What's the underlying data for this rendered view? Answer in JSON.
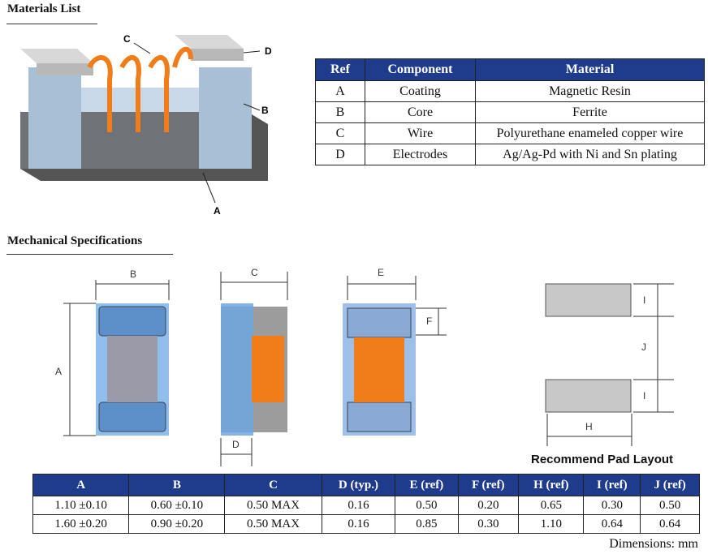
{
  "materials": {
    "title": "Materials List",
    "callouts": [
      "A",
      "B",
      "C",
      "D"
    ],
    "headers": [
      "Ref",
      "Component",
      "Material"
    ],
    "rows": [
      [
        "A",
        "Coating",
        "Magnetic Resin"
      ],
      [
        "B",
        "Core",
        "Ferrite"
      ],
      [
        "C",
        "Wire",
        "Polyurethane enameled copper wire"
      ],
      [
        "D",
        "Electrodes",
        "Ag/Ag-Pd with Ni and Sn plating"
      ]
    ]
  },
  "mechanical": {
    "title": "Mechanical Specifications",
    "dim_labels": {
      "A": "A",
      "B": "B",
      "C": "C",
      "D": "D",
      "E": "E",
      "F": "F",
      "H": "H",
      "I1": "I",
      "I2": "I",
      "J": "J"
    },
    "pad_layout_caption": "Recommend Pad Layout",
    "headers": [
      "A",
      "B",
      "C",
      "D (typ.)",
      "E (ref)",
      "F (ref)",
      "H (ref)",
      "I (ref)",
      "J (ref)"
    ],
    "rows": [
      [
        "1.10 ±0.10",
        "0.60 ±0.10",
        "0.50 MAX",
        "0.16",
        "0.50",
        "0.20",
        "0.65",
        "0.30",
        "0.50"
      ],
      [
        "1.60 ±0.20",
        "0.90 ±0.20",
        "0.50 MAX",
        "0.16",
        "0.85",
        "0.30",
        "1.10",
        "0.64",
        "0.64"
      ]
    ],
    "units_note": "Dimensions: mm"
  },
  "colors": {
    "header_bg": "#1f3c8c",
    "wire": "#f07d1a",
    "body_blue": "#6ea6e0"
  }
}
